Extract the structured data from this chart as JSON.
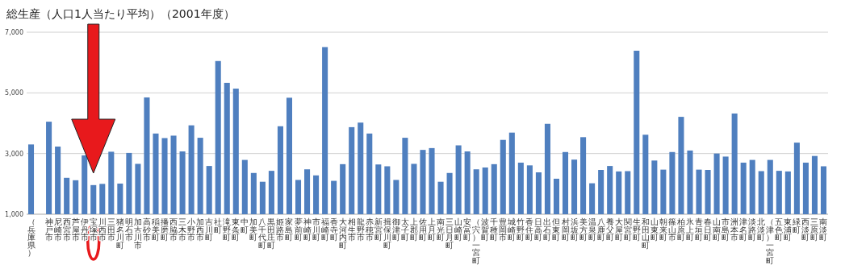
{
  "chart_data": {
    "type": "bar",
    "title": "総生産（人口1人当たり平均）（2001年度）",
    "categories": [
      "（兵庫県）",
      null,
      "神戸市",
      "尼崎市",
      "西宮市",
      "芦屋市",
      "伊丹市",
      "宝塚市",
      "川西市",
      "三田市",
      "猪名川町",
      "明石市",
      "加古川市",
      "高砂市",
      "稲美町",
      "播磨町",
      "西脇市",
      "三木市",
      "小野市",
      "加西市",
      "吉川町",
      "社町",
      "滝野町",
      "東条町",
      "中町",
      "加美町",
      "八千代町",
      "黒田庄町",
      "姫路市",
      "家島町",
      "夢前町",
      "神崎町",
      "市川町",
      "福崎町",
      "香寺町",
      "大河内町",
      "相生市",
      "龍野市",
      "赤穂市",
      "新宮町",
      "揖保川町",
      "御津町",
      "太子町",
      "上郡町",
      "佐用町",
      "上月町",
      "南光町",
      "三日月町",
      "山崎町",
      "安富町",
      "（宍）一宮町",
      "波賀町",
      "千種町",
      "豊岡市",
      "城崎町",
      "竹野町",
      "香住町",
      "日高町",
      "出石町",
      "但東町",
      "村岡町",
      "浜坂町",
      "美方町",
      "温泉町",
      "八鹿町",
      "養父町",
      "大屋町",
      "関宮町",
      "生野町",
      "和田山町",
      "山東町",
      "朝来町",
      "篠山市",
      "柏原町",
      "氷上町",
      "青垣町",
      "春日町",
      "山南町",
      "市島町",
      "洲本市",
      "津名町",
      "淡路町",
      "北淡町",
      "（津）一宮町",
      "五色町",
      "東浦町",
      "緑町",
      "西淡町",
      "三原町",
      "南淡町"
    ],
    "values": [
      3300,
      null,
      4050,
      3230,
      2200,
      2120,
      2940,
      1960,
      2000,
      3060,
      2010,
      3020,
      2660,
      4850,
      3660,
      3510,
      3590,
      3070,
      3930,
      3520,
      2590,
      6050,
      5330,
      5140,
      2790,
      2360,
      2070,
      2430,
      3900,
      4840,
      2130,
      2480,
      2280,
      6510,
      2100,
      2650,
      3870,
      4020,
      3660,
      2640,
      2580,
      2130,
      3520,
      2660,
      3120,
      3180,
      2070,
      2360,
      3270,
      3070,
      2480,
      2540,
      2650,
      3450,
      3690,
      2700,
      2610,
      2380,
      3980,
      2170,
      3050,
      2800,
      3540,
      2020,
      2460,
      2590,
      2410,
      2420,
      6390,
      3620,
      2770,
      2470,
      3050,
      4210,
      3100,
      2470,
      2460,
      3000,
      2900,
      4320,
      2700,
      2790,
      2420,
      2790,
      2430,
      2410,
      3360,
      2700,
      2920,
      2580
    ],
    "color": "#4f7fbf",
    "ylim": [
      1000,
      7000
    ],
    "yticks": [
      {
        "value": 1000,
        "label": "1,000"
      },
      {
        "value": 3000,
        "label": "3,000"
      },
      {
        "value": 5000,
        "label": "5,000"
      },
      {
        "value": 7000,
        "label": "7,000"
      }
    ],
    "grid": "y"
  }
}
